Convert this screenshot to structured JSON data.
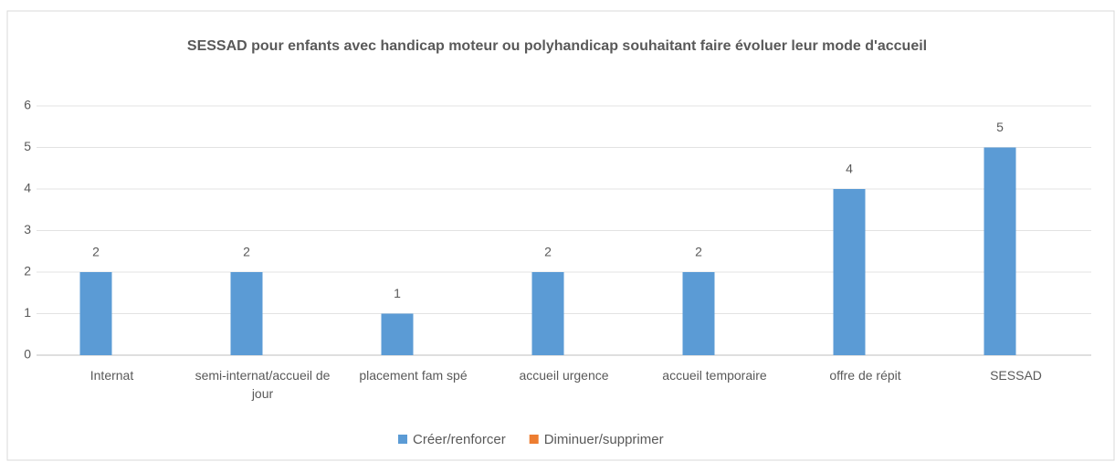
{
  "chart_data": {
    "type": "bar",
    "title": "SESSAD pour enfants avec handicap moteur ou polyhandicap souhaitant faire évoluer leur mode d'accueil",
    "categories": [
      "Internat",
      "semi-internat/accueil de jour",
      "placement fam spé",
      "accueil urgence",
      "accueil temporaire",
      "offre de répit",
      "SESSAD"
    ],
    "series": [
      {
        "name": "Créer/renforcer",
        "color": "#5b9bd5",
        "values": [
          2,
          2,
          1,
          2,
          2,
          4,
          5
        ]
      },
      {
        "name": "Diminuer/supprimer",
        "color": "#ed7d31",
        "values": [
          null,
          null,
          null,
          null,
          null,
          null,
          null
        ]
      }
    ],
    "ylim": [
      0,
      6
    ],
    "yticks": [
      0,
      1,
      2,
      3,
      4,
      5,
      6
    ],
    "grid": true,
    "legend": "bottom"
  }
}
